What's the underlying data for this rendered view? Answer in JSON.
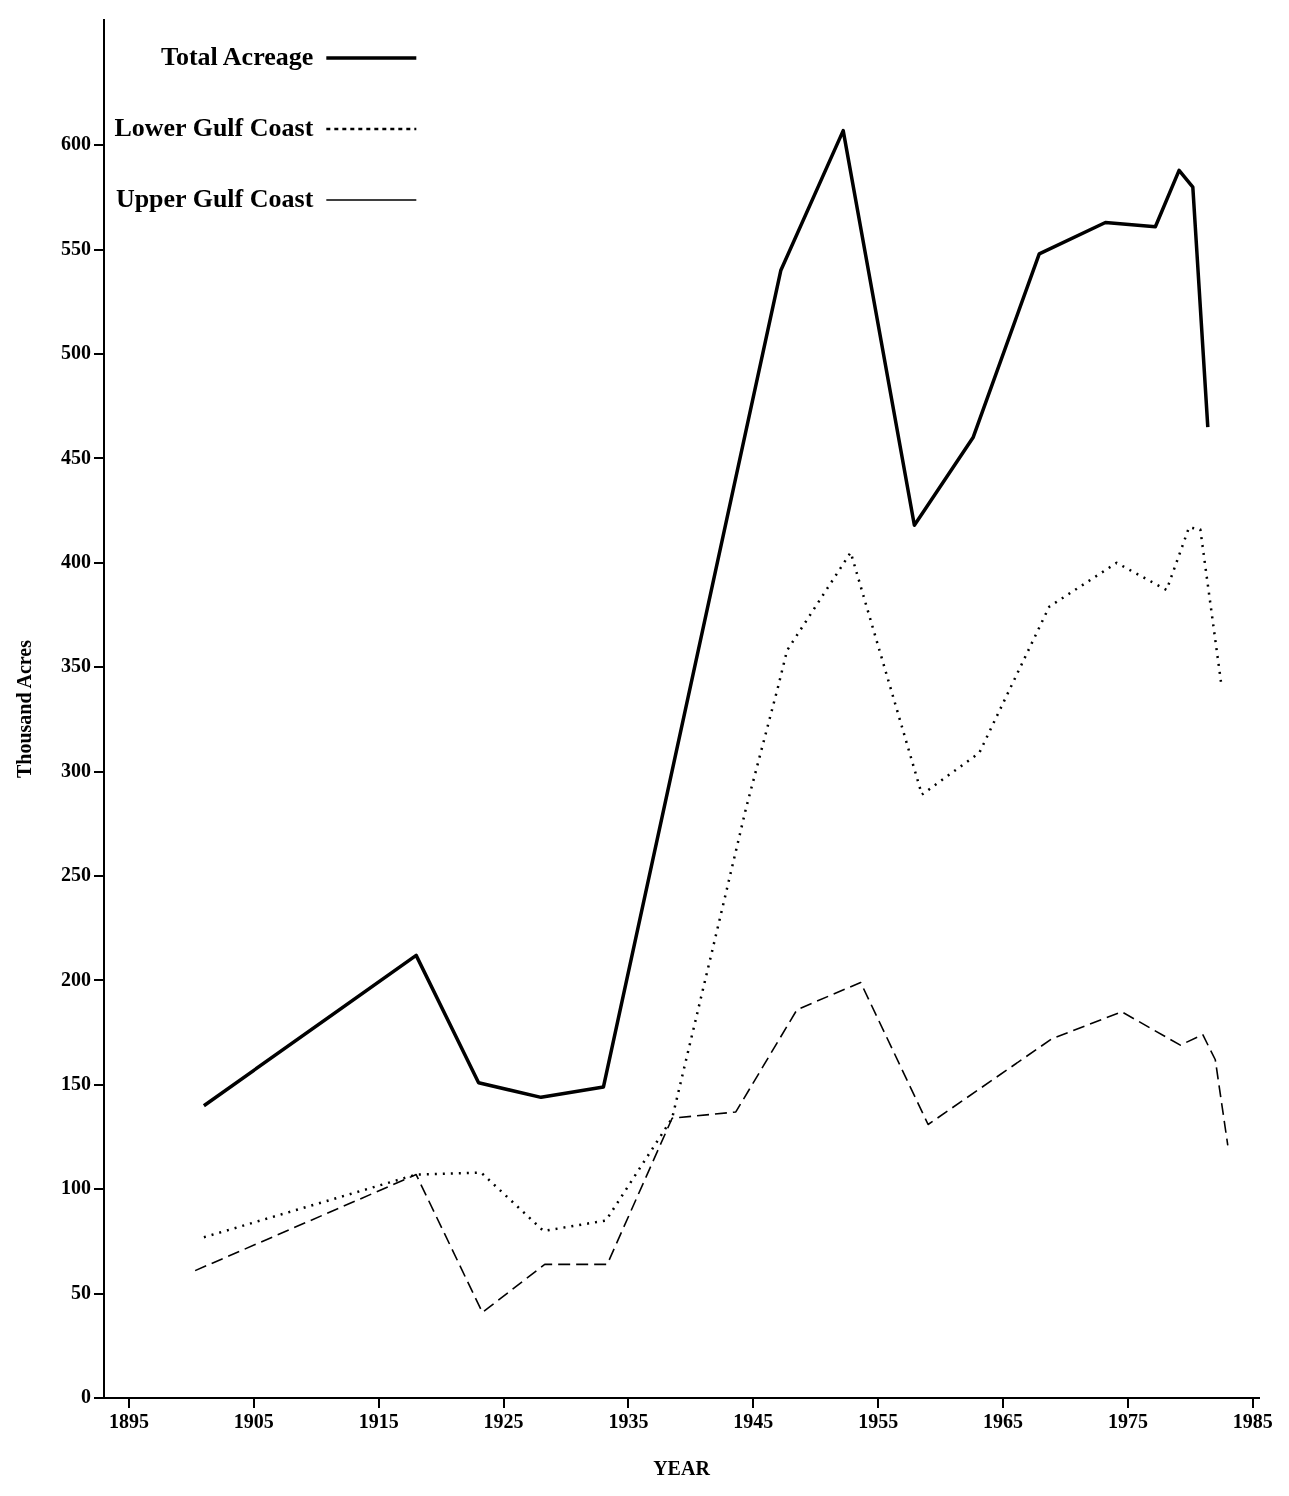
{
  "chart_data": {
    "type": "line",
    "xlabel": "YEAR",
    "ylabel": "Thousand Acres",
    "xlim": [
      1893,
      1985.5
    ],
    "xticks": [
      1895,
      1905,
      1915,
      1925,
      1935,
      1945,
      1955,
      1965,
      1975,
      1985
    ],
    "ylim": [
      0,
      660
    ],
    "yticks": [
      0,
      50,
      100,
      150,
      200,
      250,
      300,
      350,
      400,
      450,
      500,
      550,
      600
    ],
    "grid": false,
    "legend": "top left",
    "marker": "none",
    "series": [
      {
        "name": "Total Acreage",
        "color": "#000000",
        "line_style": "solid",
        "x": [
          1901,
          1918,
          1923,
          1928,
          1933,
          1947.2,
          1952.2,
          1957.9,
          1962.6,
          1967.9,
          1973.2,
          1977.2,
          1979.1,
          1980.2,
          1981.4
        ],
        "values": [
          140,
          212,
          151,
          144,
          149,
          540,
          607,
          418,
          460,
          548,
          563,
          561,
          588,
          580,
          465
        ]
      },
      {
        "name": "Lower Gulf Coast",
        "color": "#000000",
        "line_style": "dotted",
        "x": [
          1901,
          1918,
          1923.2,
          1928.2,
          1933.2,
          1938.5,
          1942.1,
          1944.4,
          1947,
          1947.7,
          1952.8,
          1958.5,
          1963.1,
          1968.7,
          1974.1,
          1978.1,
          1979.9,
          1980.8,
          1982.5
        ],
        "values": [
          77,
          107,
          108,
          80,
          85,
          134,
          224,
          282,
          341,
          358,
          405,
          289,
          309,
          379,
          400,
          387,
          417,
          416,
          341
        ]
      },
      {
        "name": "Upper Gulf Coast",
        "color": "#000000",
        "line_style": "dashed",
        "x": [
          1900.3,
          1918,
          1923.3,
          1928.3,
          1933.3,
          1938.5,
          1943.6,
          1948.5,
          1953.6,
          1959,
          1968.9,
          1974.5,
          1979.2,
          1981,
          1982,
          1983
        ],
        "values": [
          61,
          107,
          41,
          64,
          64,
          134,
          137,
          186,
          199,
          131,
          172,
          185,
          169,
          174,
          162,
          121
        ]
      }
    ]
  }
}
